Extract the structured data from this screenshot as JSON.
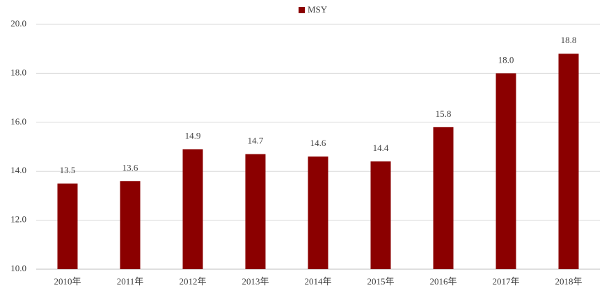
{
  "chart_data": {
    "type": "bar",
    "categories": [
      "2010年",
      "2011年",
      "2012年",
      "2013年",
      "2014年",
      "2015年",
      "2016年",
      "2017年",
      "2018年"
    ],
    "series": [
      {
        "name": "MSY",
        "color": "#8b0000",
        "values": [
          13.5,
          13.6,
          14.9,
          14.7,
          14.6,
          14.4,
          15.8,
          18.0,
          18.8
        ],
        "value_labels": [
          "13.5",
          "13.6",
          "14.9",
          "14.7",
          "14.6",
          "14.4",
          "15.8",
          "18.0",
          "18.8"
        ]
      }
    ],
    "ylim": [
      10,
      20
    ],
    "yticks": [
      {
        "value": 10,
        "label": "10.0"
      },
      {
        "value": 12,
        "label": "12.0"
      },
      {
        "value": 14,
        "label": "14.0"
      },
      {
        "value": 16,
        "label": "16.0"
      },
      {
        "value": 18,
        "label": "18.0"
      },
      {
        "value": 20,
        "label": "20.0"
      }
    ],
    "grid": true,
    "legend": "top"
  }
}
